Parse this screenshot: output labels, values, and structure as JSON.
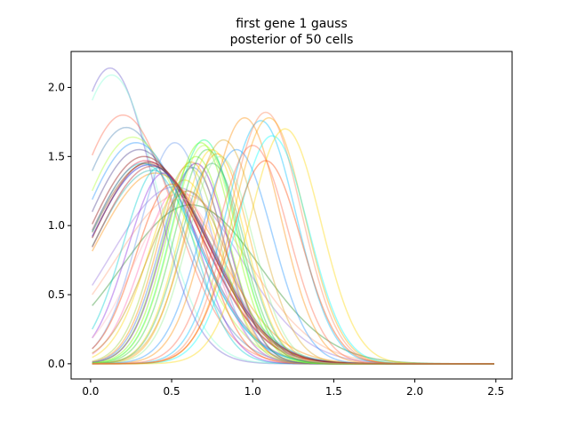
{
  "chart_data": {
    "type": "line",
    "title_lines": [
      "first gene 1 gauss",
      "posterior of 50 cells"
    ],
    "xlabel": "",
    "ylabel": "",
    "xlim": [
      -0.12,
      2.6
    ],
    "ylim": [
      -0.11,
      2.26
    ],
    "x_ticks": [
      0.0,
      0.5,
      1.0,
      1.5,
      2.0,
      2.5
    ],
    "x_tick_labels": [
      "0.0",
      "0.5",
      "1.0",
      "1.5",
      "2.0",
      "2.5"
    ],
    "y_ticks": [
      0.0,
      0.5,
      1.0,
      1.5,
      2.0
    ],
    "y_tick_labels": [
      "0.0",
      "0.5",
      "1.0",
      "1.5",
      "2.0"
    ],
    "x_range": [
      0.01,
      2.49
    ],
    "grid": false,
    "line_alpha": 0.4,
    "series_note": "each curve is a posterior density approximated by peak location, peak height and width",
    "series": [
      {
        "color": "#6a5acd",
        "peak_x": 0.12,
        "peak_y": 2.14,
        "width": 0.27
      },
      {
        "color": "#7fffd4",
        "peak_x": 0.13,
        "peak_y": 2.09,
        "width": 0.28
      },
      {
        "color": "#ff6347",
        "peak_x": 0.2,
        "peak_y": 1.8,
        "width": 0.32
      },
      {
        "color": "#4682b4",
        "peak_x": 0.22,
        "peak_y": 1.71,
        "width": 0.33
      },
      {
        "color": "#adff2f",
        "peak_x": 0.26,
        "peak_y": 1.64,
        "width": 0.34
      },
      {
        "color": "#1e90ff",
        "peak_x": 0.28,
        "peak_y": 1.6,
        "width": 0.35
      },
      {
        "color": "#483d8b",
        "peak_x": 0.3,
        "peak_y": 1.55,
        "width": 0.35
      },
      {
        "color": "#8b0000",
        "peak_x": 0.33,
        "peak_y": 1.5,
        "width": 0.36
      },
      {
        "color": "#dc143c",
        "peak_x": 0.34,
        "peak_y": 1.47,
        "width": 0.36
      },
      {
        "color": "#8b4513",
        "peak_x": 0.35,
        "peak_y": 1.45,
        "width": 0.37
      },
      {
        "color": "#0000cd",
        "peak_x": 0.36,
        "peak_y": 1.44,
        "width": 0.37
      },
      {
        "color": "#20b2aa",
        "peak_x": 0.38,
        "peak_y": 1.4,
        "width": 0.37
      },
      {
        "color": "#ff8c00",
        "peak_x": 0.4,
        "peak_y": 1.38,
        "width": 0.38
      },
      {
        "color": "#9370db",
        "peak_x": 0.52,
        "peak_y": 1.28,
        "width": 0.4
      },
      {
        "color": "#ffa07a",
        "peak_x": 0.56,
        "peak_y": 1.23,
        "width": 0.41
      },
      {
        "color": "#228b22",
        "peak_x": 0.62,
        "peak_y": 1.15,
        "width": 0.43
      },
      {
        "color": "#6495ed",
        "peak_x": 0.52,
        "peak_y": 1.6,
        "width": 0.22
      },
      {
        "color": "#00ced1",
        "peak_x": 0.42,
        "peak_y": 1.42,
        "width": 0.22
      },
      {
        "color": "#8a2be2",
        "peak_x": 0.45,
        "peak_y": 1.38,
        "width": 0.22
      },
      {
        "color": "#ff4500",
        "peak_x": 0.5,
        "peak_y": 1.3,
        "width": 0.22
      },
      {
        "color": "#ff69b4",
        "peak_x": 0.54,
        "peak_y": 1.27,
        "width": 0.22
      },
      {
        "color": "#ffd700",
        "peak_x": 0.58,
        "peak_y": 1.33,
        "width": 0.22
      },
      {
        "color": "#9acd32",
        "peak_x": 0.6,
        "peak_y": 1.43,
        "width": 0.2
      },
      {
        "color": "#7cfc00",
        "peak_x": 0.65,
        "peak_y": 1.5,
        "width": 0.2
      },
      {
        "color": "#ff8c00",
        "peak_x": 0.62,
        "peak_y": 1.46,
        "width": 0.2
      },
      {
        "color": "#6a0dad",
        "peak_x": 0.65,
        "peak_y": 1.45,
        "width": 0.2
      },
      {
        "color": "#4169e1",
        "peak_x": 0.63,
        "peak_y": 1.42,
        "width": 0.2
      },
      {
        "color": "#7fff00",
        "peak_x": 0.68,
        "peak_y": 1.6,
        "width": 0.2
      },
      {
        "color": "#00ff7f",
        "peak_x": 0.7,
        "peak_y": 1.62,
        "width": 0.2
      },
      {
        "color": "#adff2f",
        "peak_x": 0.7,
        "peak_y": 1.58,
        "width": 0.2
      },
      {
        "color": "#32cd32",
        "peak_x": 0.72,
        "peak_y": 1.55,
        "width": 0.2
      },
      {
        "color": "#ffd700",
        "peak_x": 0.75,
        "peak_y": 1.55,
        "width": 0.2
      },
      {
        "color": "#ffa500",
        "peak_x": 0.78,
        "peak_y": 1.52,
        "width": 0.2
      },
      {
        "color": "#90ee90",
        "peak_x": 0.8,
        "peak_y": 1.5,
        "width": 0.2
      },
      {
        "color": "#daa520",
        "peak_x": 0.82,
        "peak_y": 1.62,
        "width": 0.22
      },
      {
        "color": "#3cb371",
        "peak_x": 0.75,
        "peak_y": 1.45,
        "width": 0.2
      },
      {
        "color": "#ff8c00",
        "peak_x": 0.95,
        "peak_y": 1.78,
        "width": 0.22
      },
      {
        "color": "#1e90ff",
        "peak_x": 0.9,
        "peak_y": 1.55,
        "width": 0.22
      },
      {
        "color": "#00bfff",
        "peak_x": 1.05,
        "peak_y": 1.76,
        "width": 0.22
      },
      {
        "color": "#ff7f50",
        "peak_x": 1.08,
        "peak_y": 1.82,
        "width": 0.22
      },
      {
        "color": "#ffa500",
        "peak_x": 1.1,
        "peak_y": 1.78,
        "width": 0.22
      },
      {
        "color": "#00ffff",
        "peak_x": 1.12,
        "peak_y": 1.65,
        "width": 0.22
      },
      {
        "color": "#ffd700",
        "peak_x": 1.2,
        "peak_y": 1.7,
        "width": 0.22
      },
      {
        "color": "#ff4500",
        "peak_x": 1.08,
        "peak_y": 1.47,
        "width": 0.22
      },
      {
        "color": "#ff6347",
        "peak_x": 1.0,
        "peak_y": 1.58,
        "width": 0.22
      },
      {
        "color": "#00ced1",
        "peak_x": 0.32,
        "peak_y": 1.45,
        "width": 0.34
      },
      {
        "color": "#8b0000",
        "peak_x": 0.36,
        "peak_y": 1.46,
        "width": 0.36
      },
      {
        "color": "#b22222",
        "peak_x": 0.38,
        "peak_y": 1.43,
        "width": 0.36
      },
      {
        "color": "#ffb6c1",
        "peak_x": 0.55,
        "peak_y": 1.2,
        "width": 0.28
      },
      {
        "color": "#b8860b",
        "peak_x": 0.6,
        "peak_y": 1.25,
        "width": 0.25
      }
    ]
  }
}
